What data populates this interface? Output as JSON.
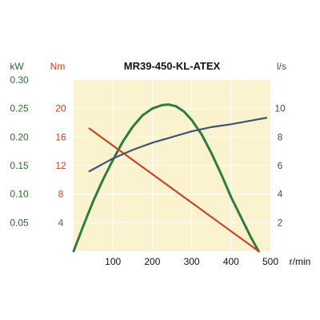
{
  "chart_data": {
    "type": "line",
    "title": "MR39-450-KL-ATEX",
    "xlabel": "r/min",
    "x_ticks": [
      "100",
      "200",
      "300",
      "400",
      "500"
    ],
    "xlim": [
      0,
      500
    ],
    "axes": {
      "power": {
        "unit": "kW",
        "ticks": [
          "0.05",
          "0.10",
          "0.15",
          "0.20",
          "0.25",
          "0.30"
        ],
        "range": [
          0,
          0.3
        ],
        "color": "#2f6b2f"
      },
      "torque": {
        "unit": "Nm",
        "ticks": [
          "4",
          "8",
          "12",
          "16",
          "20"
        ],
        "range": [
          0,
          24
        ],
        "color": "#cc3a1a"
      },
      "flow": {
        "unit": "l/s",
        "ticks": [
          "2",
          "4",
          "6",
          "8",
          "10"
        ],
        "range": [
          0,
          12
        ],
        "color": "#3d4f6b"
      }
    },
    "series": [
      {
        "id": "power",
        "color": "#2e7d3e",
        "axis": "power",
        "x": [
          0,
          25,
          50,
          75,
          100,
          125,
          150,
          175,
          200,
          225,
          242,
          260,
          280,
          300,
          325,
          350,
          375,
          400,
          425,
          450,
          470
        ],
        "y": [
          0,
          0.045,
          0.088,
          0.126,
          0.16,
          0.192,
          0.218,
          0.238,
          0.25,
          0.256,
          0.257,
          0.254,
          0.245,
          0.23,
          0.205,
          0.172,
          0.135,
          0.095,
          0.06,
          0.025,
          0
        ]
      },
      {
        "id": "torque",
        "color": "#c8442a",
        "axis": "torque",
        "x": [
          40,
          470
        ],
        "y": [
          17.2,
          0
        ]
      },
      {
        "id": "flow",
        "color": "#3d5577",
        "axis": "flow",
        "x": [
          40,
          100,
          150,
          200,
          250,
          300,
          350,
          400,
          450,
          490
        ],
        "y": [
          5.6,
          6.5,
          7.1,
          7.6,
          8.0,
          8.4,
          8.7,
          8.9,
          9.15,
          9.35
        ]
      }
    ],
    "background": "#fbf3cf",
    "grid": true,
    "grid_color": "#ffffff"
  }
}
